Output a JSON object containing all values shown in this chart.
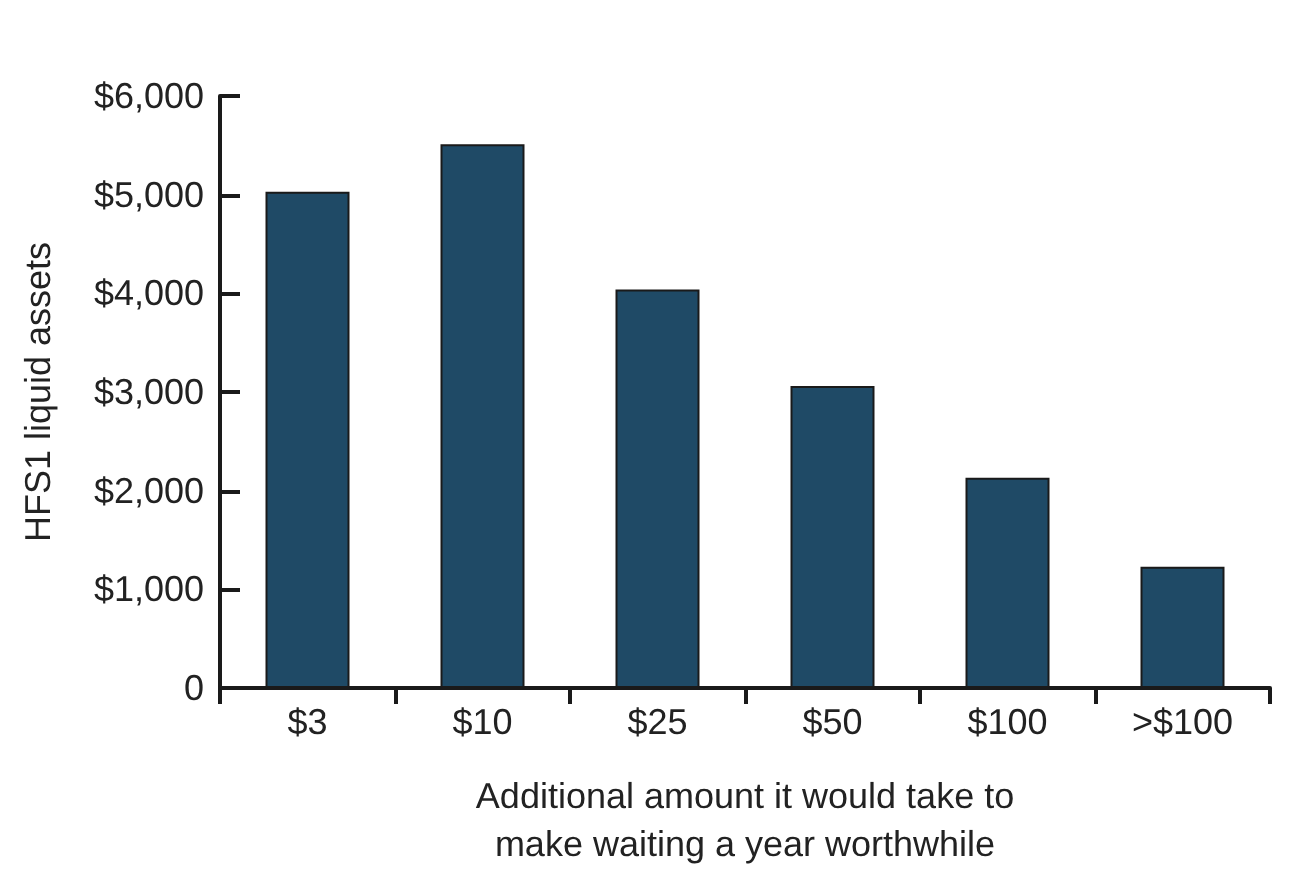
{
  "chart_data": {
    "type": "bar",
    "xlabel": "Additional amount it would take to\nmake waiting a year worthwhile",
    "ylabel": "HFS1 liquid assets",
    "categories": [
      "$3",
      "$10",
      "$25",
      "$50",
      "$100",
      ">$100"
    ],
    "values": [
      5030,
      5510,
      4040,
      3060,
      2130,
      1230
    ],
    "color": "#1f4a66",
    "ylim": [
      0,
      6000
    ],
    "yticks": [
      {
        "value": 0,
        "label": "0"
      },
      {
        "value": 1000,
        "label": "$1,000"
      },
      {
        "value": 2000,
        "label": "$2,000"
      },
      {
        "value": 3000,
        "label": "$3,000"
      },
      {
        "value": 4000,
        "label": "$4,000"
      },
      {
        "value": 5000,
        "label": "$5,000"
      },
      {
        "value": 6000,
        "label": "$6,000"
      }
    ],
    "grid": false
  }
}
